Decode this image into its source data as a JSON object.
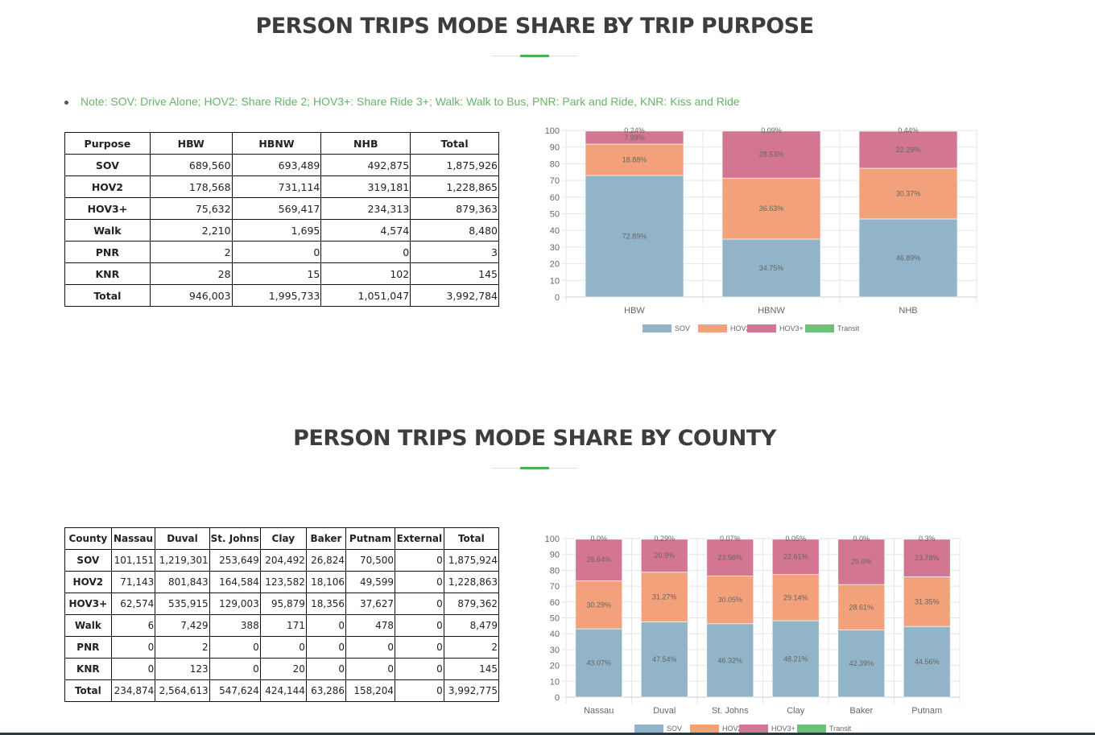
{
  "section1": {
    "title": "PERSON TRIPS MODE SHARE BY TRIP PURPOSE",
    "note": "Note: SOV: Drive Alone; HOV2: Share Ride 2; HOV3+: Share Ride 3+; Walk: Walk to Bus, PNR: Park and Ride, KNR: Kiss and Ride",
    "table": {
      "headers": [
        "Purpose",
        "HBW",
        "HBNW",
        "NHB",
        "Total"
      ],
      "rows": [
        [
          "SOV",
          "689,560",
          "693,489",
          "492,875",
          "1,875,926"
        ],
        [
          "HOV2",
          "178,568",
          "731,114",
          "319,181",
          "1,228,865"
        ],
        [
          "HOV3+",
          "75,632",
          "569,417",
          "234,313",
          "879,363"
        ],
        [
          "Walk",
          "2,210",
          "1,695",
          "4,574",
          "8,480"
        ],
        [
          "PNR",
          "2",
          "0",
          "0",
          "3"
        ],
        [
          "KNR",
          "28",
          "15",
          "102",
          "145"
        ],
        [
          "Total",
          "946,003",
          "1,995,733",
          "1,051,047",
          "3,992,784"
        ]
      ]
    }
  },
  "section2": {
    "title": "PERSON TRIPS MODE SHARE BY COUNTY",
    "table": {
      "headers": [
        "County",
        "Nassau",
        "Duval",
        "St. Johns",
        "Clay",
        "Baker",
        "Putnam",
        "External",
        "Total"
      ],
      "rows": [
        [
          "SOV",
          "101,151",
          "1,219,301",
          "253,649",
          "204,492",
          "26,824",
          "70,500",
          "0",
          "1,875,924"
        ],
        [
          "HOV2",
          "71,143",
          "801,843",
          "164,584",
          "123,582",
          "18,106",
          "49,599",
          "0",
          "1,228,863"
        ],
        [
          "HOV3+",
          "62,574",
          "535,915",
          "129,003",
          "95,879",
          "18,356",
          "37,627",
          "0",
          "879,362"
        ],
        [
          "Walk",
          "6",
          "7,429",
          "388",
          "171",
          "0",
          "478",
          "0",
          "8,479"
        ],
        [
          "PNR",
          "0",
          "2",
          "0",
          "0",
          "0",
          "0",
          "0",
          "2"
        ],
        [
          "KNR",
          "0",
          "123",
          "0",
          "20",
          "0",
          "0",
          "0",
          "145"
        ],
        [
          "Total",
          "234,874",
          "2,564,613",
          "547,624",
          "424,144",
          "63,286",
          "158,204",
          "0",
          "3,992,775"
        ]
      ]
    }
  },
  "chart_data": [
    {
      "type": "bar",
      "stacked": true,
      "title": "",
      "categories": [
        "HBW",
        "HBNW",
        "NHB"
      ],
      "ylim": [
        0,
        100
      ],
      "yticks": [
        0,
        10,
        20,
        30,
        40,
        50,
        60,
        70,
        80,
        90,
        100
      ],
      "legend": "bottom",
      "grid": true,
      "series": [
        {
          "name": "SOV",
          "color": "#92b4c8",
          "values": [
            72.89,
            34.75,
            46.89
          ],
          "labels": [
            "72.89%",
            "34.75%",
            "46.89%"
          ]
        },
        {
          "name": "HOV2",
          "color": "#f3a17a",
          "values": [
            18.88,
            36.63,
            30.37
          ],
          "labels": [
            "18.88%",
            "36.63%",
            "30.37%"
          ]
        },
        {
          "name": "HOV3+",
          "color": "#d37692",
          "values": [
            7.99,
            28.53,
            22.29
          ],
          "labels": [
            "7.99%",
            "28.53%",
            "22.29%"
          ]
        },
        {
          "name": "Transit",
          "color": "#6dbf7a",
          "values": [
            0.24,
            0.09,
            0.44
          ],
          "labels": [
            "0.24%",
            "0.09%",
            "0.44%"
          ]
        }
      ]
    },
    {
      "type": "bar",
      "stacked": true,
      "title": "",
      "categories": [
        "Nassau",
        "Duval",
        "St. Johns",
        "Clay",
        "Baker",
        "Putnam"
      ],
      "ylim": [
        0,
        100
      ],
      "yticks": [
        0,
        10,
        20,
        30,
        40,
        50,
        60,
        70,
        80,
        90,
        100
      ],
      "legend": "bottom",
      "grid": true,
      "series": [
        {
          "name": "SOV",
          "color": "#92b4c8",
          "values": [
            43.07,
            47.54,
            46.32,
            48.21,
            42.39,
            44.56
          ],
          "labels": [
            "43.07%",
            "47.54%",
            "46.32%",
            "48.21%",
            "42.39%",
            "44.56%"
          ]
        },
        {
          "name": "HOV2",
          "color": "#f3a17a",
          "values": [
            30.29,
            31.27,
            30.05,
            29.14,
            28.61,
            31.35
          ],
          "labels": [
            "30.29%",
            "31.27%",
            "30.05%",
            "29.14%",
            "28.61%",
            "31.35%"
          ]
        },
        {
          "name": "HOV3+",
          "color": "#d37692",
          "values": [
            26.64,
            20.9,
            23.56,
            22.61,
            29.0,
            23.78
          ],
          "labels": [
            "26.64%",
            "20.9%",
            "23.56%",
            "22.61%",
            "29.0%",
            "23.78%"
          ]
        },
        {
          "name": "Transit",
          "color": "#6dbf7a",
          "values": [
            0.0,
            0.29,
            0.07,
            0.05,
            0.0,
            0.3
          ],
          "labels": [
            "0.0%",
            "0.29%",
            "0.07%",
            "0.05%",
            "0.0%",
            "0.3%"
          ]
        }
      ]
    }
  ]
}
